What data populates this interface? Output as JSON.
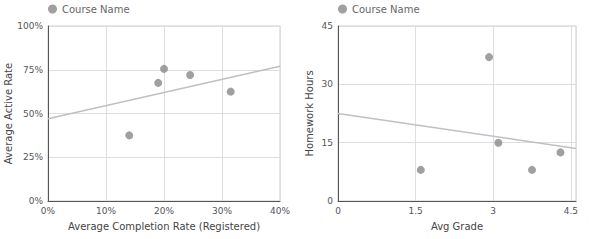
{
  "chart_data": [
    {
      "type": "scatter",
      "xlabel": "Average Completion Rate (Registered)",
      "ylabel": "Average Active Rate",
      "xlim": [
        0.0,
        0.4
      ],
      "ylim": [
        0.0,
        1.0
      ],
      "xticks": [
        {
          "value": 0.0,
          "label": "0%"
        },
        {
          "value": 0.1,
          "label": "10%"
        },
        {
          "value": 0.2,
          "label": "20%"
        },
        {
          "value": 0.3,
          "label": "30%"
        },
        {
          "value": 0.4,
          "label": "40%"
        }
      ],
      "yticks": [
        {
          "value": 0.0,
          "label": "0%"
        },
        {
          "value": 0.25,
          "label": "25%"
        },
        {
          "value": 0.5,
          "label": "50%"
        },
        {
          "value": 0.75,
          "label": "75%"
        },
        {
          "value": 1.0,
          "label": "100%"
        }
      ],
      "grid": true,
      "legend": "upper left",
      "series": [
        {
          "name": "Course Name",
          "type": "scatter",
          "color": "#888888",
          "x": [
            0.14,
            0.19,
            0.2,
            0.245,
            0.315
          ],
          "values": [
            0.375,
            0.675,
            0.755,
            0.72,
            0.625
          ]
        },
        {
          "type": "line",
          "color": "#c0c0c0",
          "x": [
            0.0,
            0.4
          ],
          "values": [
            0.47,
            0.77
          ]
        }
      ]
    },
    {
      "type": "scatter",
      "xlabel": "Avg Grade",
      "ylabel": "Homework Hours",
      "xlim": [
        0.0,
        4.6
      ],
      "ylim": [
        0.0,
        45.0
      ],
      "xticks": [
        0,
        1.5,
        3,
        4.5
      ],
      "yticks": [
        0,
        15,
        30,
        45
      ],
      "grid": true,
      "legend": "upper left",
      "series": [
        {
          "name": "Course Name",
          "type": "scatter",
          "color": "#888888",
          "x": [
            1.6,
            2.92,
            3.1,
            3.75,
            4.3
          ],
          "values": [
            8.0,
            37.0,
            15.0,
            8.0,
            12.5
          ]
        },
        {
          "type": "line",
          "color": "#c0c0c0",
          "x": [
            0.0,
            4.6
          ],
          "values": [
            22.5,
            13.5
          ]
        }
      ]
    }
  ]
}
